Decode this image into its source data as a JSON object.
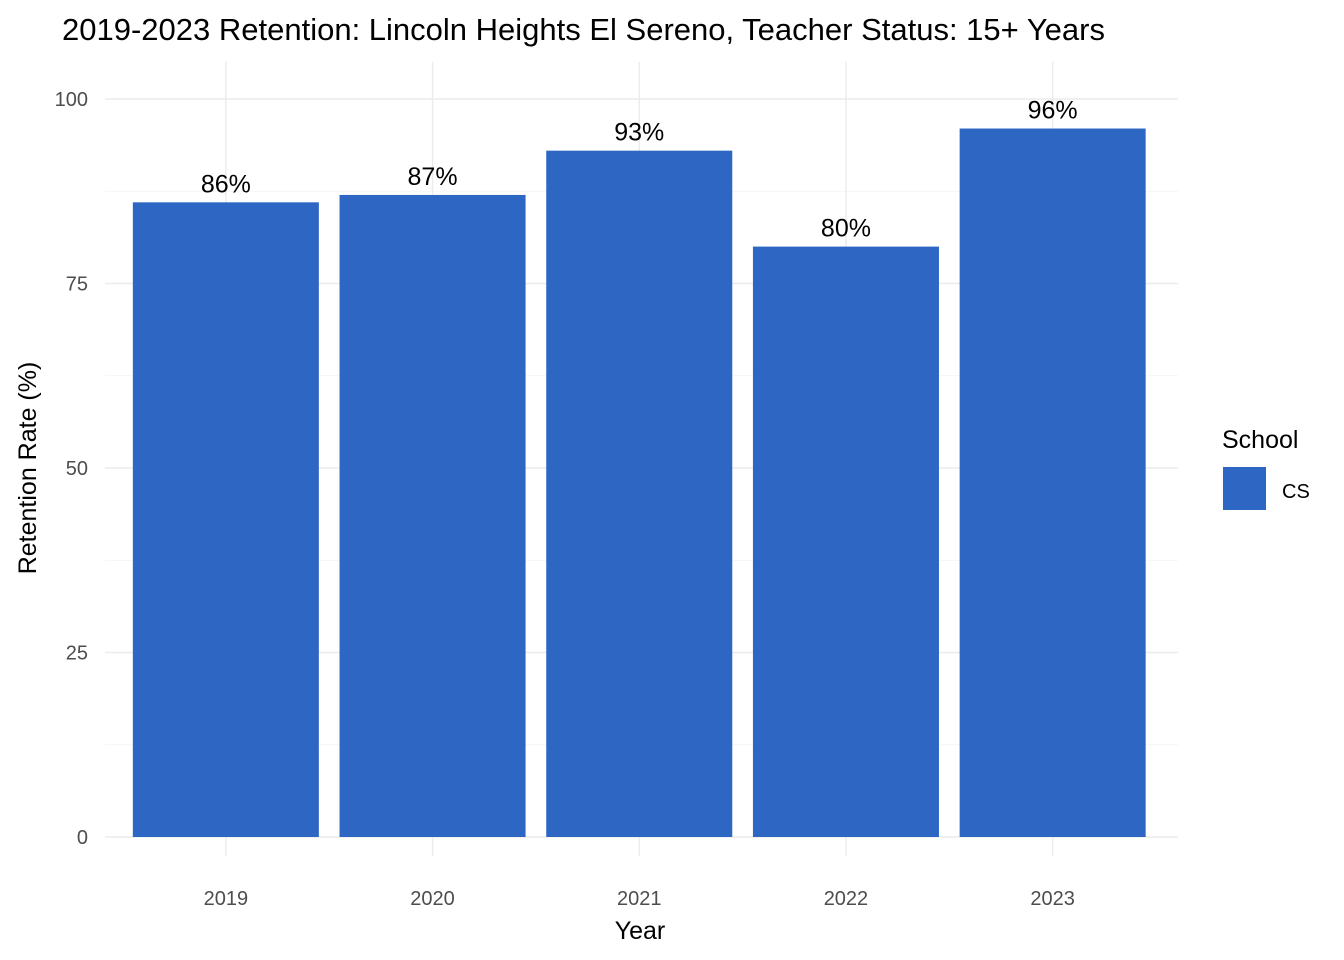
{
  "chart_data": {
    "type": "bar",
    "title": "2019-2023 Retention: Lincoln Heights El Sereno, Teacher Status: 15+ Years",
    "xlabel": "Year",
    "ylabel": "Retention Rate (%)",
    "categories": [
      "2019",
      "2020",
      "2021",
      "2022",
      "2023"
    ],
    "series": [
      {
        "name": "CS",
        "values": [
          86,
          87,
          93,
          80,
          96
        ],
        "color": "#2e67c3"
      }
    ],
    "data_labels": [
      "86%",
      "87%",
      "93%",
      "80%",
      "96%"
    ],
    "ylim": [
      0,
      100
    ],
    "yticks": [
      0,
      25,
      50,
      75,
      100
    ],
    "grid": true,
    "legend": {
      "title": "School",
      "position": "right",
      "entries": [
        "CS"
      ]
    }
  }
}
